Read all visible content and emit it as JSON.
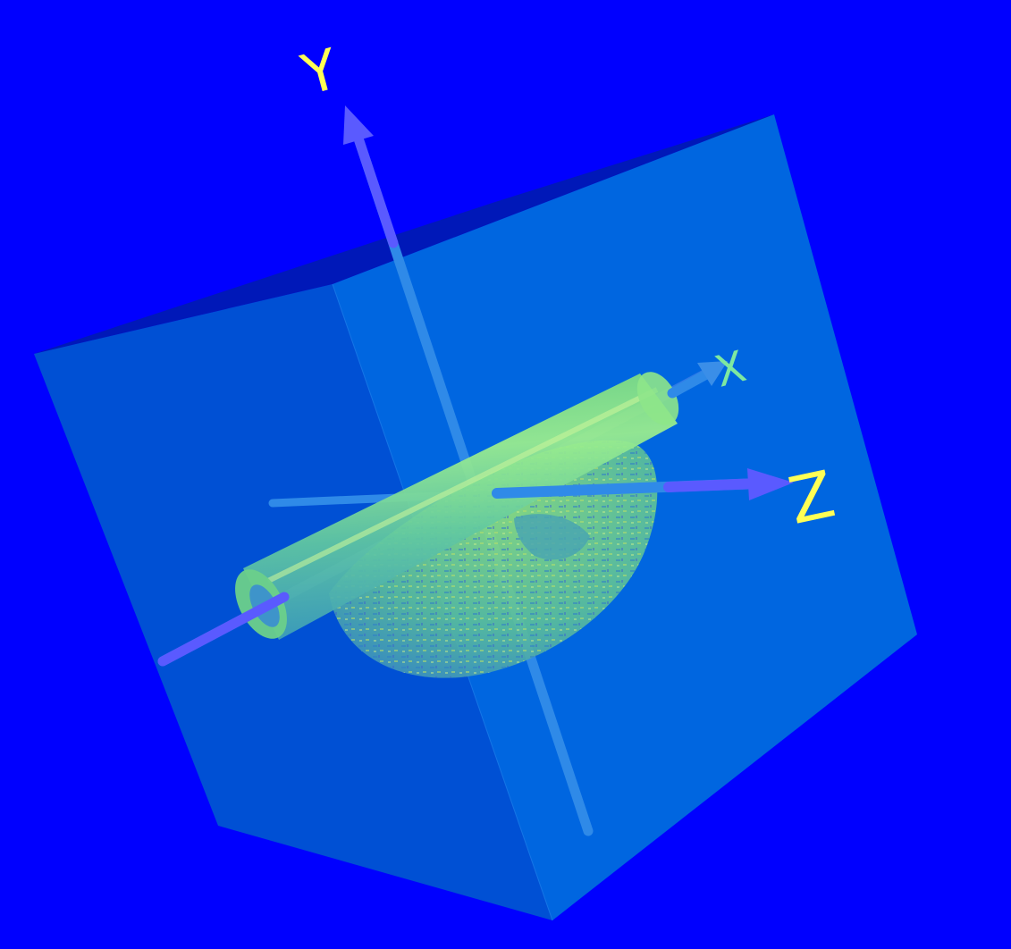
{
  "scene": {
    "background_color": "#0000ff",
    "cube_color": "#1a7fe0",
    "shape_color": "#7ee07a",
    "axis_color": "#5a5aff"
  },
  "axes": {
    "x_label": "X",
    "y_label": "Y",
    "z_label": "Z",
    "x_label_color": "#7ee8a0",
    "y_label_color": "#ffff55",
    "z_label_color": "#ffff55"
  }
}
